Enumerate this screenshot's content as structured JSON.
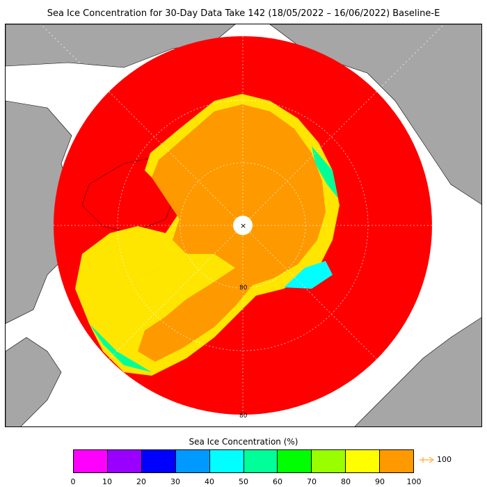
{
  "title": "Sea Ice Concentration for 30-Day Data Take 142 (18/05/2022 – 16/06/2022) Baseline-E",
  "map": {
    "latitude_labels": [
      "80",
      "80"
    ],
    "pole_marker": "×",
    "colors": {
      "ocean": "#ff0000",
      "land": "#a6a6a6",
      "ice_core": "#ff9900",
      "ice_edge": "#ffff00",
      "graticule": "#ffffff"
    }
  },
  "legend": {
    "title": "Sea Ice Concentration (%)",
    "colors": [
      "#ff00ff",
      "#9900ff",
      "#0000ff",
      "#0099ff",
      "#00ffff",
      "#00ff99",
      "#00ff00",
      "#99ff00",
      "#ffff00",
      "#ff9900"
    ],
    "ticks": [
      "0",
      "10",
      "20",
      "30",
      "40",
      "50",
      "60",
      "70",
      "80",
      "90",
      "100"
    ],
    "overflow_label": "100",
    "overflow_color": "#ff9900"
  }
}
